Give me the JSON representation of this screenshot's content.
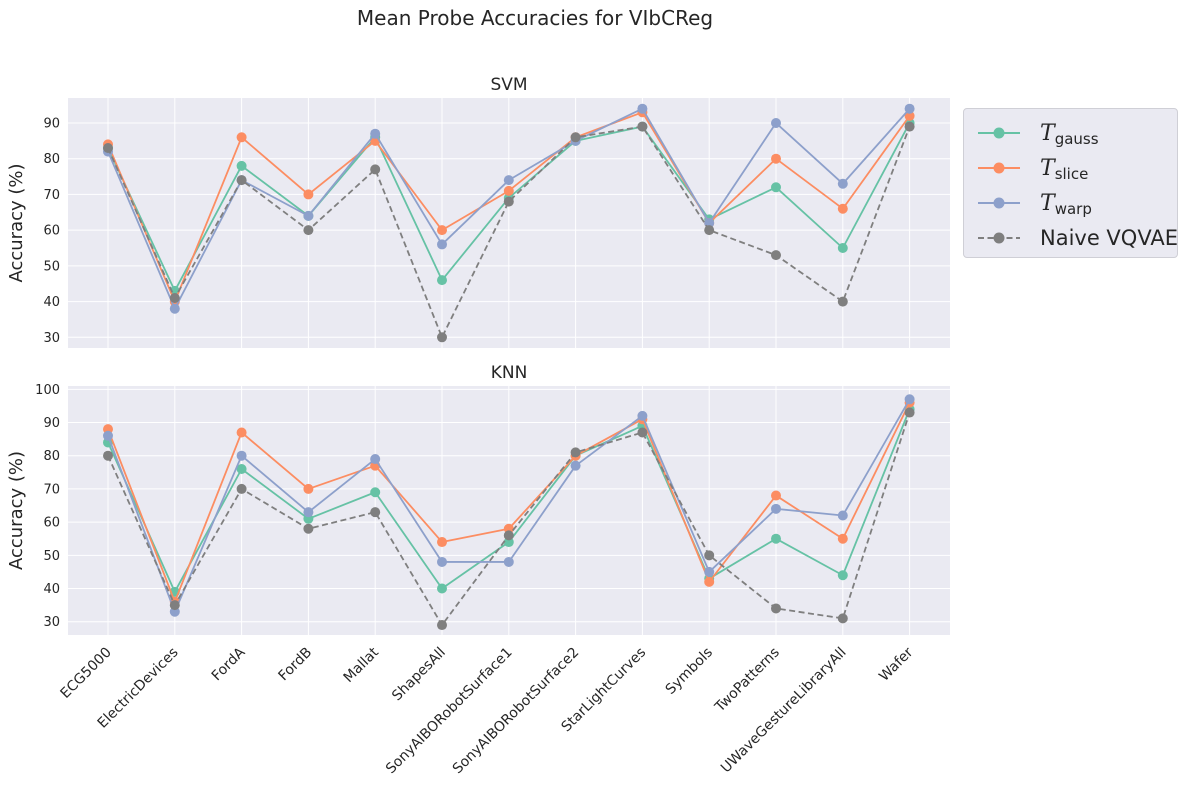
{
  "figure": {
    "title": "Mean Probe Accuracies for VIbCReg"
  },
  "colors": {
    "T_gauss": "#66c2a5",
    "T_slice": "#fc8d62",
    "T_warp": "#8da0cb",
    "Naive VQVAE": "#7f7f7f",
    "plot_bg": "#eaeaf2",
    "grid": "#ffffff",
    "text": "#262626"
  },
  "legend": {
    "placement": "outside upper right",
    "items": [
      {
        "key": "T_gauss",
        "base": "T",
        "sub": "gauss"
      },
      {
        "key": "T_slice",
        "base": "T",
        "sub": "slice"
      },
      {
        "key": "T_warp",
        "base": "T",
        "sub": "warp"
      },
      {
        "key": "Naive VQVAE",
        "text": "Naive VQVAE",
        "dashed": true
      }
    ]
  },
  "chart_data": [
    {
      "type": "line",
      "title": "SVM",
      "xlabel": "",
      "ylabel": "Accuracy (%)",
      "ylim": [
        27,
        97
      ],
      "yticks": [
        30,
        40,
        50,
        60,
        70,
        80,
        90
      ],
      "grid": true,
      "categories": [
        "ECG5000",
        "ElectricDevices",
        "FordA",
        "FordB",
        "Mallat",
        "ShapesAll",
        "SonyAIBORobotSurface1",
        "SonyAIBORobotSurface2",
        "StarLightCurves",
        "Symbols",
        "TwoPatterns",
        "UWaveGestureLibraryAll",
        "Wafer"
      ],
      "series": [
        {
          "name": "T_gauss",
          "values": [
            83,
            43,
            78,
            64,
            86,
            46,
            69,
            85,
            89,
            63,
            72,
            55,
            90
          ]
        },
        {
          "name": "T_slice",
          "values": [
            84,
            40,
            86,
            70,
            85,
            60,
            71,
            86,
            93,
            62,
            80,
            66,
            92
          ]
        },
        {
          "name": "T_warp",
          "values": [
            82,
            38,
            74,
            64,
            87,
            56,
            74,
            85,
            94,
            62,
            90,
            73,
            94
          ]
        },
        {
          "name": "Naive VQVAE",
          "values": [
            83,
            41,
            74,
            60,
            77,
            30,
            68,
            86,
            89,
            60,
            53,
            40,
            89
          ]
        }
      ]
    },
    {
      "type": "line",
      "title": "KNN",
      "xlabel": "",
      "ylabel": "Accuracy (%)",
      "ylim": [
        26,
        101
      ],
      "yticks": [
        30,
        40,
        50,
        60,
        70,
        80,
        90,
        100
      ],
      "grid": true,
      "categories": [
        "ECG5000",
        "ElectricDevices",
        "FordA",
        "FordB",
        "Mallat",
        "ShapesAll",
        "SonyAIBORobotSurface1",
        "SonyAIBORobotSurface2",
        "StarLightCurves",
        "Symbols",
        "TwoPatterns",
        "UWaveGestureLibraryAll",
        "Wafer"
      ],
      "series": [
        {
          "name": "T_gauss",
          "values": [
            84,
            39,
            76,
            61,
            69,
            40,
            54,
            80,
            89,
            43,
            55,
            44,
            94
          ]
        },
        {
          "name": "T_slice",
          "values": [
            88,
            36,
            87,
            70,
            77,
            54,
            58,
            80,
            91,
            42,
            68,
            55,
            96
          ]
        },
        {
          "name": "T_warp",
          "values": [
            86,
            33,
            80,
            63,
            79,
            48,
            48,
            77,
            92,
            45,
            64,
            62,
            97
          ]
        },
        {
          "name": "Naive VQVAE",
          "values": [
            80,
            35,
            70,
            58,
            63,
            29,
            56,
            81,
            87,
            50,
            34,
            31,
            93
          ]
        }
      ]
    }
  ]
}
